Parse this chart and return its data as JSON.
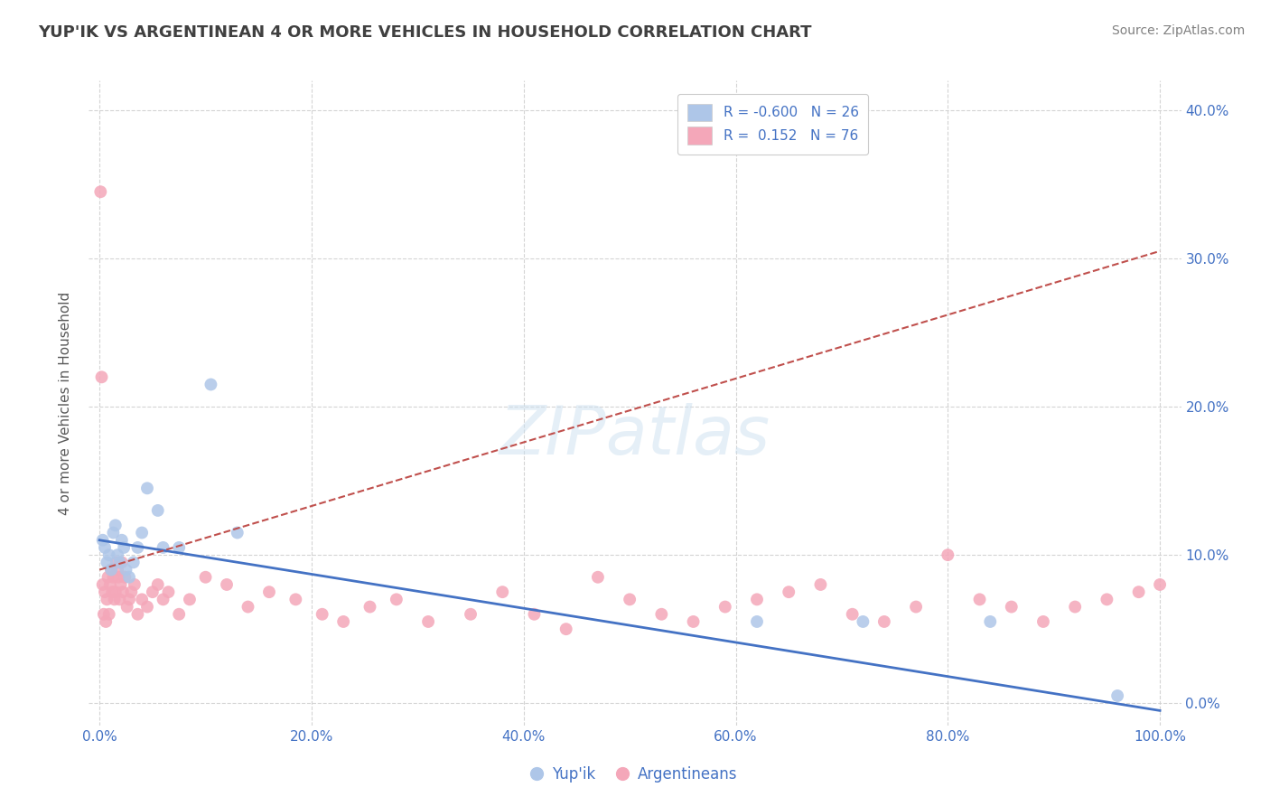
{
  "title": "YUP'IK VS ARGENTINEAN 4 OR MORE VEHICLES IN HOUSEHOLD CORRELATION CHART",
  "source": "Source: ZipAtlas.com",
  "xlabel_tick_vals": [
    0,
    20,
    40,
    60,
    80,
    100
  ],
  "ylabel_tick_vals": [
    0,
    10,
    20,
    30,
    40
  ],
  "xlim": [
    -1,
    102
  ],
  "ylim": [
    -1.5,
    42
  ],
  "watermark_text": "ZIPatlas",
  "blue_color": "#aec6e8",
  "pink_color": "#f4a7b9",
  "blue_line_color": "#4472c4",
  "pink_line_color": "#c0504d",
  "title_color": "#404040",
  "source_color": "#808080",
  "axis_label_color": "#595959",
  "tick_color": "#4472c4",
  "grid_color": "#d0d0d0",
  "yup_x": [
    0.3,
    0.5,
    0.7,
    0.9,
    1.1,
    1.3,
    1.5,
    1.7,
    1.9,
    2.1,
    2.3,
    2.5,
    2.8,
    3.2,
    3.6,
    4.0,
    4.5,
    5.5,
    6.0,
    7.5,
    10.5,
    13.0,
    62.0,
    72.0,
    84.0,
    96.0
  ],
  "yup_y": [
    11.0,
    10.5,
    9.5,
    10.0,
    9.0,
    11.5,
    12.0,
    10.0,
    9.5,
    11.0,
    10.5,
    9.0,
    8.5,
    9.5,
    10.5,
    11.5,
    14.5,
    13.0,
    10.5,
    10.5,
    21.5,
    11.5,
    5.5,
    5.5,
    5.5,
    0.5
  ],
  "arg_x": [
    0.1,
    0.2,
    0.3,
    0.4,
    0.5,
    0.6,
    0.7,
    0.8,
    0.9,
    1.0,
    1.1,
    1.2,
    1.3,
    1.4,
    1.5,
    1.6,
    1.7,
    1.8,
    1.9,
    2.0,
    2.1,
    2.2,
    2.4,
    2.6,
    2.8,
    3.0,
    3.3,
    3.6,
    4.0,
    4.5,
    5.0,
    5.5,
    6.0,
    6.5,
    7.5,
    8.5,
    10.0,
    12.0,
    14.0,
    16.0,
    18.5,
    21.0,
    23.0,
    25.5,
    28.0,
    31.0,
    35.0,
    38.0,
    41.0,
    44.0,
    47.0,
    50.0,
    53.0,
    56.0,
    59.0,
    62.0,
    65.0,
    68.0,
    71.0,
    74.0,
    77.0,
    80.0,
    83.0,
    86.0,
    89.0,
    92.0,
    95.0,
    98.0,
    100.0
  ],
  "arg_y": [
    34.5,
    22.0,
    8.0,
    6.0,
    7.5,
    5.5,
    7.0,
    8.5,
    6.0,
    8.0,
    9.0,
    7.5,
    8.5,
    7.0,
    7.5,
    9.5,
    9.0,
    8.5,
    7.0,
    8.0,
    9.5,
    7.5,
    8.5,
    6.5,
    7.0,
    7.5,
    8.0,
    6.0,
    7.0,
    6.5,
    7.5,
    8.0,
    7.0,
    7.5,
    6.0,
    7.0,
    8.5,
    8.0,
    6.5,
    7.5,
    7.0,
    6.0,
    5.5,
    6.5,
    7.0,
    5.5,
    6.0,
    7.5,
    6.0,
    5.0,
    8.5,
    7.0,
    6.0,
    5.5,
    6.5,
    7.0,
    7.5,
    8.0,
    6.0,
    5.5,
    6.5,
    10.0,
    7.0,
    6.5,
    5.5,
    6.5,
    7.0,
    7.5,
    8.0
  ],
  "blue_trendline_x": [
    0,
    100
  ],
  "blue_trendline_y_start": 11.0,
  "blue_trendline_y_end": -0.5,
  "pink_trendline_x": [
    0,
    100
  ],
  "pink_trendline_y_start": 9.0,
  "pink_trendline_y_end": 30.5
}
